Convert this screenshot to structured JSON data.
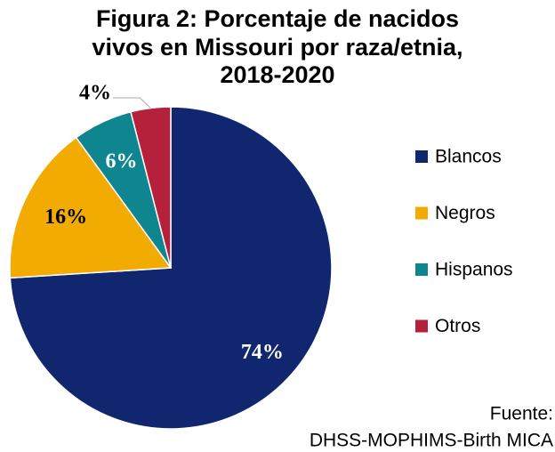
{
  "chart_data": {
    "type": "pie",
    "title": [
      "Figura 2: Porcentaje de nacidos",
      "vivos en Missouri por raza/etnia,",
      "2018-2020"
    ],
    "categories": [
      "Blancos",
      "Negros",
      "Hispanos",
      "Otros"
    ],
    "values": [
      74,
      16,
      6,
      4
    ],
    "value_labels": [
      "74%",
      "16%",
      "6%",
      "4%"
    ],
    "colors": [
      "#102770",
      "#f2ab00",
      "#0f868f",
      "#b5203a"
    ],
    "legend": "right",
    "source": [
      "Fuente:",
      "DHSS-MOPHIMS-Birth MICA"
    ]
  }
}
